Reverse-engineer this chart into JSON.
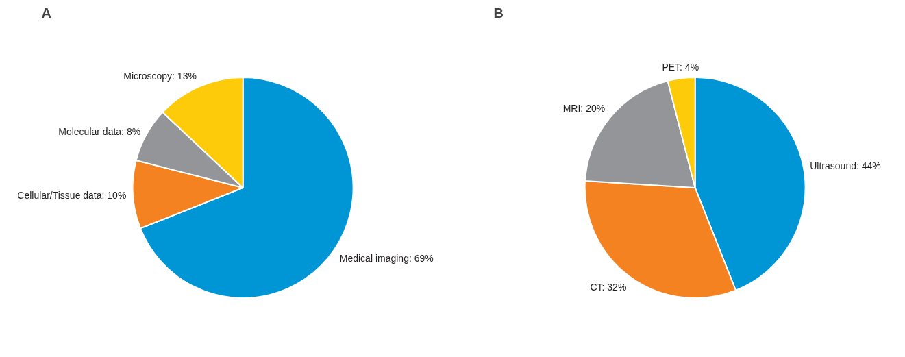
{
  "chart_data": [
    {
      "type": "pie",
      "title": "A",
      "categories": [
        "Medical imaging",
        "Cellular/Tissue data",
        "Molecular data",
        "Microscopy"
      ],
      "values": [
        69,
        10,
        8,
        13
      ],
      "value_labels": [
        "69%",
        "10%",
        "8%",
        "13%"
      ],
      "colors": [
        "#0096d6",
        "#f48220",
        "#939598",
        "#fecb0a"
      ]
    },
    {
      "type": "pie",
      "title": "B",
      "categories": [
        "Ultrasound",
        "CT",
        "MRI",
        "PET"
      ],
      "values": [
        44,
        32,
        20,
        4
      ],
      "value_labels": [
        "44%",
        "32%",
        "20%",
        "4%"
      ],
      "colors": [
        "#0096d6",
        "#f48220",
        "#939598",
        "#fecb0a"
      ]
    }
  ]
}
